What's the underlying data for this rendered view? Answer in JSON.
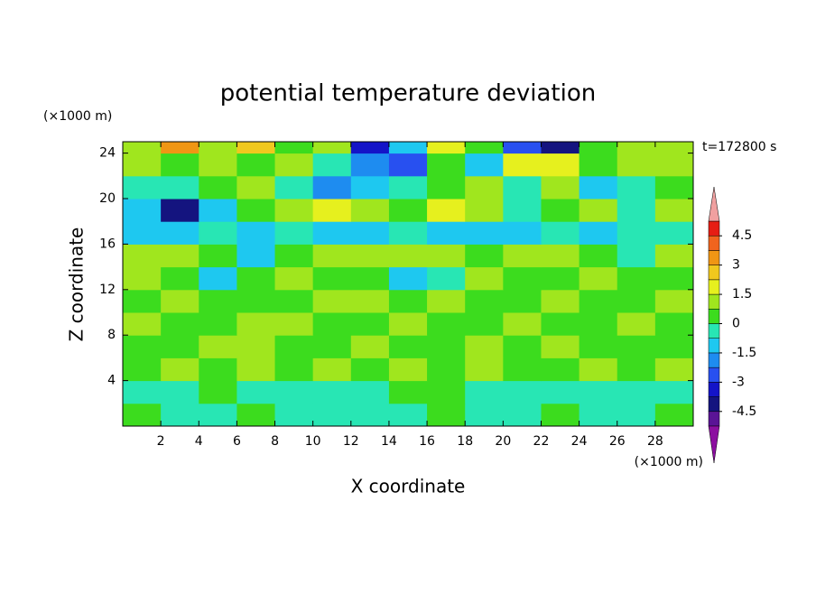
{
  "chart_data": {
    "type": "contour",
    "title": "potential temperature deviation",
    "x_label": "X coordinate",
    "y_label": "Z coordinate",
    "x_unit": "(×1000 m)",
    "y_unit": "(×1000 m)",
    "annotation": "t=172800 s",
    "xlim": [
      0,
      30
    ],
    "ylim": [
      0,
      25
    ],
    "xticks": [
      2,
      4,
      6,
      8,
      10,
      12,
      14,
      16,
      18,
      20,
      22,
      24,
      26,
      28
    ],
    "yticks": [
      4,
      8,
      12,
      16,
      20,
      24
    ],
    "x": [
      1,
      3,
      5,
      7,
      9,
      11,
      13,
      15,
      17,
      19,
      21,
      23,
      25,
      27,
      29
    ],
    "y": [
      1,
      3,
      5,
      7,
      9,
      11,
      13,
      15,
      17,
      19,
      21,
      23,
      25
    ],
    "z": [
      [
        0.3,
        -0.3,
        -0.3,
        0.3,
        -0.3,
        -0.3,
        -0.3,
        -0.3,
        0.3,
        -0.3,
        -0.3,
        0.3,
        -0.3,
        -0.3,
        0.3
      ],
      [
        -0.3,
        -0.3,
        0.3,
        -0.3,
        -0.3,
        -0.3,
        -0.3,
        0.3,
        0.3,
        -0.3,
        -0.3,
        -0.3,
        -0.3,
        -0.3,
        -0.3
      ],
      [
        0.3,
        0.8,
        0.3,
        0.8,
        0.3,
        0.8,
        0.3,
        0.8,
        0.3,
        0.8,
        0.3,
        0.3,
        0.8,
        0.3,
        0.8
      ],
      [
        0.3,
        0.3,
        0.8,
        1.2,
        0.3,
        0.3,
        0.8,
        0.3,
        0.3,
        0.8,
        0.3,
        1.2,
        0.3,
        0.3,
        0.3
      ],
      [
        0.8,
        0.3,
        0.3,
        0.8,
        1.2,
        0.3,
        0.3,
        0.8,
        0.3,
        0.3,
        0.8,
        0.3,
        0.3,
        0.8,
        0.3
      ],
      [
        0.3,
        0.8,
        0.3,
        0.3,
        0.3,
        0.8,
        1.2,
        0.3,
        0.8,
        0.3,
        0.3,
        0.8,
        0.3,
        0.3,
        0.8
      ],
      [
        0.8,
        0.3,
        -0.8,
        0.3,
        0.8,
        0.3,
        0.3,
        -0.8,
        -0.3,
        0.8,
        0.3,
        0.3,
        0.8,
        0.3,
        0.3
      ],
      [
        1.2,
        0.8,
        0.3,
        -0.8,
        0.3,
        0.8,
        1.2,
        1.2,
        0.8,
        0.3,
        0.8,
        1.2,
        0.3,
        -0.3,
        0.8
      ],
      [
        -0.8,
        -1.2,
        -0.3,
        -0.8,
        -0.3,
        -0.8,
        -1.2,
        -0.3,
        -0.8,
        -0.8,
        -1.2,
        -0.3,
        -0.8,
        -0.3,
        -0.3
      ],
      [
        -0.8,
        -4.2,
        -1.2,
        0.3,
        1.2,
        1.8,
        0.8,
        0.3,
        1.8,
        0.8,
        -0.3,
        0.3,
        0.8,
        -0.3,
        0.8
      ],
      [
        -0.3,
        -0.3,
        0.3,
        0.8,
        -0.3,
        -2.2,
        -0.8,
        -0.3,
        0.3,
        0.8,
        -0.3,
        0.8,
        -1.2,
        -0.3,
        0.3
      ],
      [
        0.8,
        0.3,
        1.2,
        0.3,
        0.8,
        -0.3,
        -2.2,
        -2.8,
        0.3,
        -0.8,
        1.8,
        2.2,
        0.3,
        0.8,
        1.2
      ],
      [
        0.8,
        3.2,
        0.8,
        2.8,
        0.3,
        1.2,
        -3.2,
        -0.8,
        1.8,
        0.3,
        -2.8,
        -3.8,
        0.3,
        0.8,
        1.2
      ]
    ],
    "levels": [
      -5.25,
      -4.5,
      -3.75,
      -3,
      -2.25,
      -1.5,
      -0.75,
      0,
      0.75,
      1.5,
      2.25,
      3,
      3.75,
      4.5,
      5.25
    ],
    "colors": [
      "#5a1496",
      "#14147f",
      "#1414c8",
      "#2850f0",
      "#1e8cf0",
      "#1ec8f0",
      "#28e6b4",
      "#3cdc1e",
      "#a0e61e",
      "#e6f01e",
      "#f0c81e",
      "#f09614",
      "#f0641e",
      "#e61e14"
    ],
    "under_color": "#8c0fa0",
    "over_color": "#f0a0a0",
    "colorbar_ticks": [
      -4.5,
      -3,
      -1.5,
      0,
      1.5,
      3,
      4.5
    ]
  }
}
